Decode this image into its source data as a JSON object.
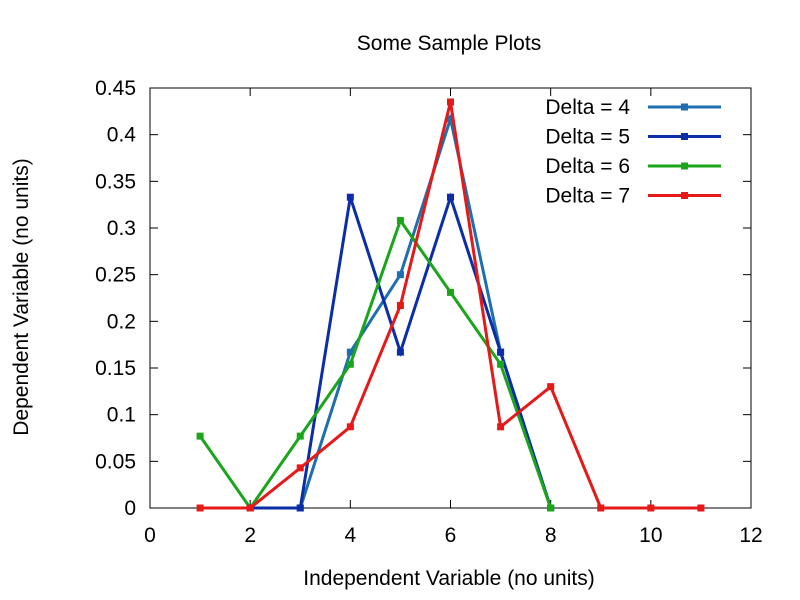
{
  "chart_data": {
    "type": "line",
    "title": "Some Sample Plots",
    "xlabel": "Independent Variable (no units)",
    "ylabel": "Dependent Variable (no units)",
    "xlim": [
      0,
      12
    ],
    "ylim": [
      0,
      0.45
    ],
    "xticks": [
      0,
      2,
      4,
      6,
      8,
      10,
      12
    ],
    "yticks": [
      0,
      0.05,
      0.1,
      0.15,
      0.2,
      0.25,
      0.3,
      0.35,
      0.4,
      0.45
    ],
    "xtick_labels": [
      "0",
      "2",
      "4",
      "6",
      "8",
      "10",
      "12"
    ],
    "ytick_labels": [
      "0",
      "0.05",
      "0.1",
      "0.15",
      "0.2",
      "0.25",
      "0.3",
      "0.35",
      "0.4",
      "0.45"
    ],
    "grid": false,
    "legend_position": "top-right",
    "series": [
      {
        "name": "Delta = 4",
        "color": "#1f6fb0",
        "points": [
          [
            3,
            0
          ],
          [
            4,
            0.167
          ],
          [
            5,
            0.25
          ],
          [
            6,
            0.417
          ],
          [
            7,
            0.167
          ],
          [
            8,
            0
          ]
        ]
      },
      {
        "name": "Delta = 5",
        "color": "#0b2ea8",
        "points": [
          [
            2,
            0
          ],
          [
            3,
            0
          ],
          [
            4,
            0.333
          ],
          [
            5,
            0.167
          ],
          [
            6,
            0.333
          ],
          [
            7,
            0.167
          ],
          [
            8,
            0
          ]
        ]
      },
      {
        "name": "Delta = 6",
        "color": "#1aa51a",
        "points": [
          [
            1,
            0.077
          ],
          [
            2,
            0
          ],
          [
            3,
            0.077
          ],
          [
            4,
            0.154
          ],
          [
            5,
            0.308
          ],
          [
            6,
            0.231
          ],
          [
            7,
            0.154
          ],
          [
            8,
            0
          ]
        ]
      },
      {
        "name": "Delta = 7",
        "color": "#e61919",
        "points": [
          [
            1,
            0
          ],
          [
            2,
            0
          ],
          [
            3,
            0.043
          ],
          [
            4,
            0.087
          ],
          [
            5,
            0.217
          ],
          [
            6,
            0.435
          ],
          [
            7,
            0.087
          ],
          [
            8,
            0.13
          ],
          [
            9,
            0
          ],
          [
            10,
            0
          ],
          [
            11,
            0
          ]
        ]
      }
    ]
  }
}
